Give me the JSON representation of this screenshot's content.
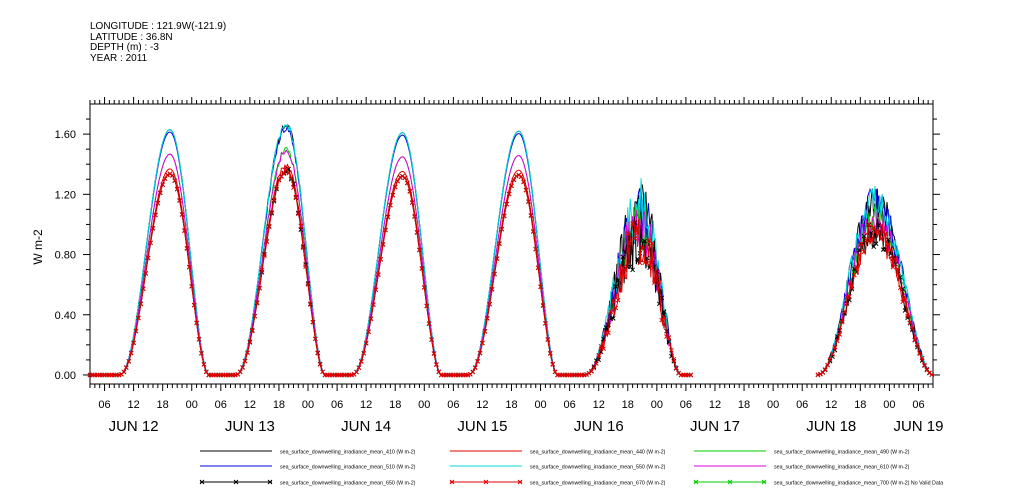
{
  "meta_lines": [
    "LONGITUDE : 121.9W(-121.9)",
    "LATITUDE : 36.8N",
    "DEPTH (m) : -3",
    "YEAR : 2011"
  ],
  "chart_data": {
    "type": "line",
    "title": "",
    "xlabel": "",
    "ylabel": "W m-2",
    "ylim": [
      -0.06,
      1.8
    ],
    "yticks": [
      0.0,
      0.4,
      0.8,
      1.2,
      1.6
    ],
    "ytick_labels": [
      "0.00",
      "0.40",
      "0.80",
      "1.20",
      "1.60"
    ],
    "x_unit": "hours since JUN 12 00:00 (2011)",
    "xlim": [
      3,
      177
    ],
    "hour_ticks": [
      {
        "x": 6,
        "label": "06"
      },
      {
        "x": 12,
        "label": "12"
      },
      {
        "x": 18,
        "label": "18"
      },
      {
        "x": 24,
        "label": "00"
      },
      {
        "x": 30,
        "label": "06"
      },
      {
        "x": 36,
        "label": "12"
      },
      {
        "x": 42,
        "label": "18"
      },
      {
        "x": 48,
        "label": "00"
      },
      {
        "x": 54,
        "label": "06"
      },
      {
        "x": 60,
        "label": "12"
      },
      {
        "x": 66,
        "label": "18"
      },
      {
        "x": 72,
        "label": "00"
      },
      {
        "x": 78,
        "label": "06"
      },
      {
        "x": 84,
        "label": "12"
      },
      {
        "x": 90,
        "label": "18"
      },
      {
        "x": 96,
        "label": "00"
      },
      {
        "x": 102,
        "label": "06"
      },
      {
        "x": 108,
        "label": "12"
      },
      {
        "x": 114,
        "label": "18"
      },
      {
        "x": 120,
        "label": "00"
      },
      {
        "x": 126,
        "label": "06"
      },
      {
        "x": 132,
        "label": "12"
      },
      {
        "x": 138,
        "label": "18"
      },
      {
        "x": 144,
        "label": "00"
      },
      {
        "x": 150,
        "label": "06"
      },
      {
        "x": 156,
        "label": "12"
      },
      {
        "x": 162,
        "label": "18"
      },
      {
        "x": 168,
        "label": "00"
      },
      {
        "x": 174,
        "label": "06"
      }
    ],
    "day_labels": [
      {
        "x": 12,
        "label": "JUN 12"
      },
      {
        "x": 36,
        "label": "JUN 13"
      },
      {
        "x": 60,
        "label": "JUN 14"
      },
      {
        "x": 84,
        "label": "JUN 15"
      },
      {
        "x": 108,
        "label": "JUN 16"
      },
      {
        "x": 132,
        "label": "JUN 17"
      },
      {
        "x": 156,
        "label": "JUN 18"
      },
      {
        "x": 174,
        "label": "JUN 19"
      }
    ],
    "days": [
      {
        "start": 9,
        "end": 27.5,
        "peak_time": 19.5,
        "peak": 1.63,
        "noise": 0.0
      },
      {
        "start": 33,
        "end": 51.5,
        "peak_time": 43.5,
        "peak": 1.66,
        "noise": 0.04
      },
      {
        "start": 57,
        "end": 75.5,
        "peak_time": 67.5,
        "peak": 1.61,
        "noise": 0.0
      },
      {
        "start": 81,
        "end": 99.5,
        "peak_time": 91.5,
        "peak": 1.62,
        "noise": 0.0
      },
      {
        "start": 105,
        "end": 125,
        "peak_time": 116.5,
        "peak": 1.1,
        "noise": 0.35
      },
      {
        "start": 153,
        "end": 177,
        "peak_time": 165,
        "peak": 1.15,
        "noise": 0.2
      }
    ],
    "gaps": [
      [
        127,
        153
      ]
    ],
    "series": [
      {
        "name": "sea_surface_downwelling_irradiance_mean_410 (W m-2)",
        "color": "#000000",
        "factor": 1.0,
        "marker": "none"
      },
      {
        "name": "sea_surface_downwelling_irradiance_mean_440 (W m-2)",
        "color": "#e00000",
        "factor": 0.84,
        "marker": "none"
      },
      {
        "name": "sea_surface_downwelling_irradiance_mean_490 (W m-2)",
        "color": "#00cc00",
        "factor": 0.9,
        "marker": "none"
      },
      {
        "name": "sea_surface_downwelling_irradiance_mean_510 (W m-2)",
        "color": "#0000dd",
        "factor": 0.99,
        "marker": "none"
      },
      {
        "name": "sea_surface_downwelling_irradiance_mean_550 (W m-2)",
        "color": "#00d8d8",
        "factor": 1.0,
        "marker": "none"
      },
      {
        "name": "sea_surface_downwelling_irradiance_mean_610 (W m-2)",
        "color": "#e000e0",
        "factor": 0.9,
        "marker": "none"
      },
      {
        "name": "sea_surface_downwelling_irradiance_mean_650 (W m-2)",
        "color": "#000000",
        "factor": 0.82,
        "marker": "x"
      },
      {
        "name": "sea_surface_downwelling_irradiance_mean_670 (W m-2)",
        "color": "#e00000",
        "factor": 0.82,
        "marker": "x"
      },
      {
        "name": "sea_surface_downwelling_irradiance_mean_700 (W m-2) No Valid Data",
        "color": "#00cc00",
        "factor": 0.0,
        "marker": "x",
        "no_data": true
      }
    ]
  }
}
